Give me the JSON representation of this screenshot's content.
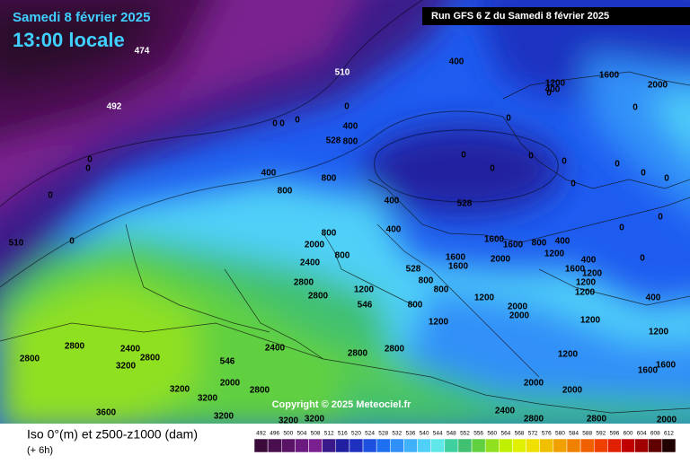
{
  "header": {
    "date": "Samedi 8 février 2025",
    "time": "13:00 locale",
    "run": "Run GFS 6 Z du Samedi 8 février 2025"
  },
  "copyright": "Copyright © 2025 Meteociel.fr",
  "legend": {
    "label": "Iso 0°(m) et z500-z1000 (dam)",
    "sublabel": "(+ 6h)",
    "values": [
      492,
      496,
      500,
      504,
      508,
      512,
      516,
      520,
      524,
      528,
      532,
      536,
      540,
      544,
      548,
      552,
      556,
      560,
      564,
      568,
      572,
      576,
      580,
      584,
      588,
      592,
      596,
      600,
      604,
      608,
      612
    ],
    "colors": [
      "#3a0a3a",
      "#4a0f4f",
      "#5a1466",
      "#6b1a80",
      "#7a2090",
      "#3a1a8a",
      "#2020a0",
      "#1e30c0",
      "#1e50e0",
      "#1e70f0",
      "#3090f8",
      "#40b0f8",
      "#50d0f8",
      "#60e8e8",
      "#40d0a0",
      "#40c070",
      "#60d040",
      "#90e020",
      "#c0f000",
      "#e0f000",
      "#f0e000",
      "#f0c000",
      "#f0a000",
      "#f08000",
      "#f06000",
      "#f04000",
      "#e02000",
      "#c00000",
      "#a00000",
      "#600000",
      "#200000"
    ]
  },
  "map_labels": [
    474,
    492,
    510,
    510,
    528,
    528,
    528,
    546,
    546,
    400,
    0,
    0,
    0,
    0,
    400,
    800,
    0,
    0,
    0,
    0,
    400,
    800,
    800,
    400,
    0,
    0,
    0,
    0,
    0,
    400,
    800,
    2000,
    800,
    2400,
    2800,
    2800,
    1200,
    800,
    800,
    1200,
    800,
    1200,
    2000,
    2000,
    1600,
    1600,
    2000,
    1600,
    1600,
    800,
    400,
    1200,
    2800,
    2800,
    3200,
    2400,
    2800,
    2400,
    2800,
    2800,
    2000,
    2800,
    3200,
    3200,
    3600,
    3200,
    3200,
    3200,
    1200,
    1200,
    2000,
    1200,
    1600,
    1600,
    2000,
    2400,
    2800,
    2800,
    2000,
    1200,
    400,
    1200,
    1200,
    1600,
    400,
    0,
    0,
    0,
    0,
    0,
    0,
    400,
    1200,
    1600,
    2000,
    0,
    0,
    0
  ]
}
